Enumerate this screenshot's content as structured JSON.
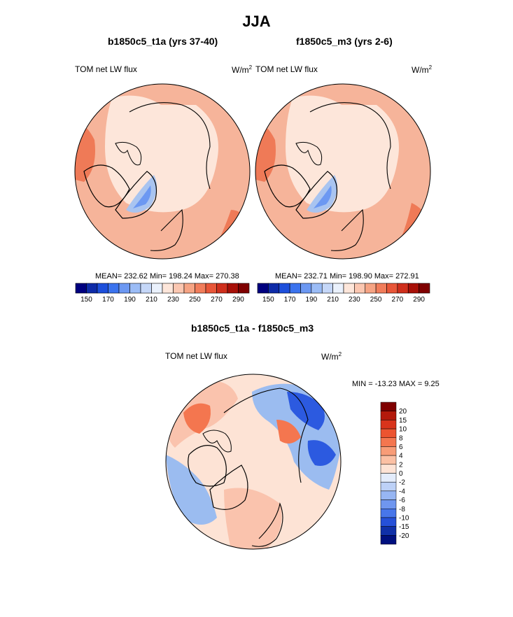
{
  "figure": {
    "title": "JJA",
    "colors": {
      "ocean_pos": "#f6b49a",
      "land_light": "#fde6da",
      "warm_strong": "#ef7a57",
      "cool_blue": "#a9c4f0",
      "diff_pos": "#fac3ad",
      "diff_neg": "#9bbcf0",
      "diff_deep_blue": "#2c5ae0",
      "coast": "#000000"
    }
  },
  "chart_data": [
    {
      "type": "heatmap",
      "projection": "north polar stereographic",
      "title": "b1850c5_t1a (yrs 37-40)",
      "left_label": "TOM net LW flux",
      "units_base": "W/m",
      "units_exp": "2",
      "stats": {
        "mean": 232.62,
        "min": 198.24,
        "max": 270.38
      },
      "stats_text": "MEAN= 232.62  Min= 198.24  Max= 270.38",
      "colorbar": {
        "ticks": [
          "150",
          "170",
          "190",
          "210",
          "230",
          "250",
          "270",
          "290"
        ],
        "colors": [
          "#00007f",
          "#0e2ba8",
          "#1d4fdb",
          "#3b73ee",
          "#6c98f2",
          "#9bbcf6",
          "#c5d7f8",
          "#eaf1fc",
          "#fde6da",
          "#fbc7b1",
          "#f6a484",
          "#f17d5b",
          "#e85638",
          "#cf2f1c",
          "#a81008",
          "#7f0000"
        ]
      }
    },
    {
      "type": "heatmap",
      "projection": "north polar stereographic",
      "title": "f1850c5_m3 (yrs 2-6)",
      "left_label": "TOM net LW flux",
      "units_base": "W/m",
      "units_exp": "2",
      "stats": {
        "mean": 232.71,
        "min": 198.9,
        "max": 272.91
      },
      "stats_text": "MEAN= 232.71  Min= 198.90  Max= 272.91",
      "colorbar": {
        "ticks": [
          "150",
          "170",
          "190",
          "210",
          "230",
          "250",
          "270",
          "290"
        ],
        "colors": [
          "#00007f",
          "#0e2ba8",
          "#1d4fdb",
          "#3b73ee",
          "#6c98f2",
          "#9bbcf6",
          "#c5d7f8",
          "#eaf1fc",
          "#fde6da",
          "#fbc7b1",
          "#f6a484",
          "#f17d5b",
          "#e85638",
          "#cf2f1c",
          "#a81008",
          "#7f0000"
        ]
      }
    },
    {
      "type": "heatmap",
      "projection": "north polar stereographic",
      "title": "b1850c5_t1a - f1850c5_m3",
      "left_label": "TOM net LW flux",
      "units_base": "W/m",
      "units_exp": "2",
      "stats": {
        "min": -13.23,
        "max": 9.25
      },
      "stats_text": "MIN = -13.23 MAX =   9.25",
      "colorbar": {
        "ticks": [
          "20",
          "15",
          "10",
          "8",
          "6",
          "4",
          "2",
          "0",
          "-2",
          "-4",
          "-6",
          "-8",
          "-10",
          "-15",
          "-20"
        ],
        "colors": [
          "#7f0000",
          "#b3190b",
          "#d8341c",
          "#ec5430",
          "#f4764f",
          "#f89c77",
          "#fbc0a4",
          "#fde3d5",
          "#e3ecfb",
          "#bdd1f7",
          "#97b6f3",
          "#6f96ef",
          "#4876ea",
          "#2650d8",
          "#1030a8",
          "#00107f"
        ]
      }
    }
  ]
}
